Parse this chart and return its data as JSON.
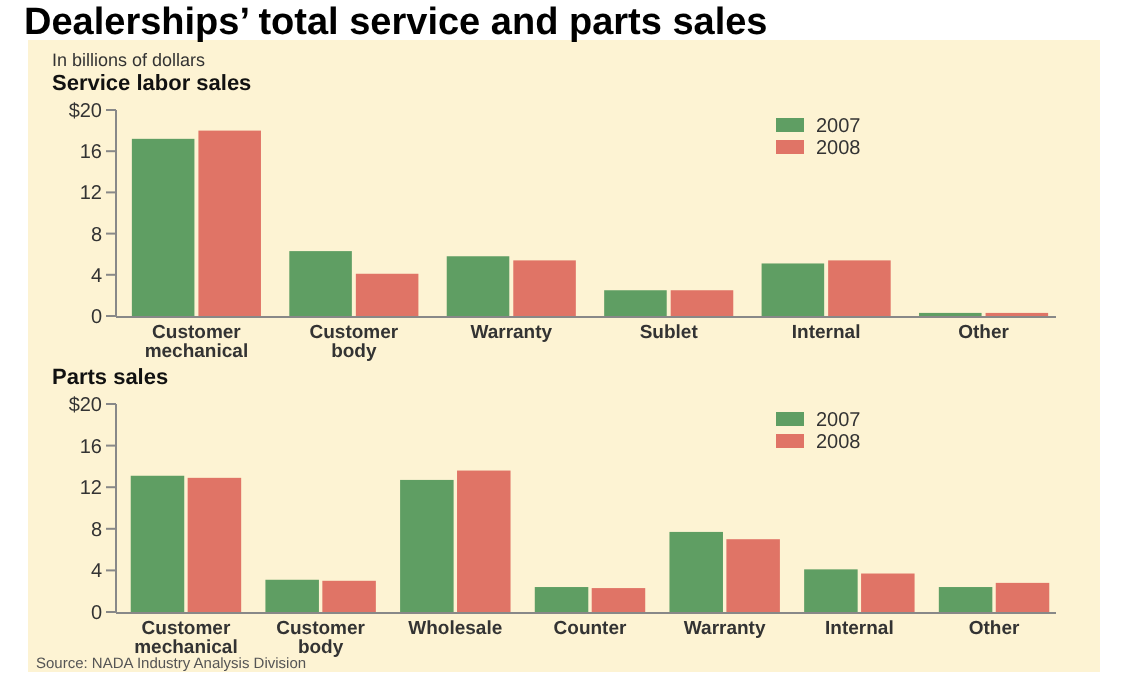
{
  "chart_data": [
    {
      "type": "bar",
      "title": "Dealerships’ total service and parts sales",
      "subtitle": "Service labor sales",
      "ylabel": "In billions of dollars",
      "categories": [
        "Customer mechanical",
        "Customer body",
        "Warranty",
        "Sublet",
        "Internal",
        "Other"
      ],
      "series": [
        {
          "name": "2007",
          "color": "#5f9e63",
          "values": [
            17.2,
            6.3,
            5.8,
            2.5,
            5.1,
            0.3
          ]
        },
        {
          "name": "2008",
          "color": "#e07466",
          "values": [
            18.0,
            4.1,
            5.4,
            2.5,
            5.4,
            0.3
          ]
        }
      ],
      "ylim": [
        0,
        20
      ],
      "yticks": [
        0,
        4,
        8,
        12,
        16,
        {
          "value": 20,
          "label": "$20"
        }
      ],
      "legend": "top right"
    },
    {
      "type": "bar",
      "title": "Parts sales",
      "categories": [
        "Customer mechanical",
        "Customer body",
        "Wholesale",
        "Counter",
        "Warranty",
        "Internal",
        "Other"
      ],
      "series": [
        {
          "name": "2007",
          "color": "#5f9e63",
          "values": [
            13.1,
            3.1,
            12.7,
            2.4,
            7.7,
            4.1,
            2.4
          ]
        },
        {
          "name": "2008",
          "color": "#e07466",
          "values": [
            12.9,
            3.0,
            13.6,
            2.3,
            7.0,
            3.7,
            2.8
          ]
        }
      ],
      "ylim": [
        0,
        20
      ],
      "yticks": [
        0,
        4,
        8,
        12,
        16,
        {
          "value": 20,
          "label": "$20"
        }
      ],
      "legend": "top right",
      "annotations": [
        "Source: NADA Industry Analysis Division"
      ]
    }
  ]
}
